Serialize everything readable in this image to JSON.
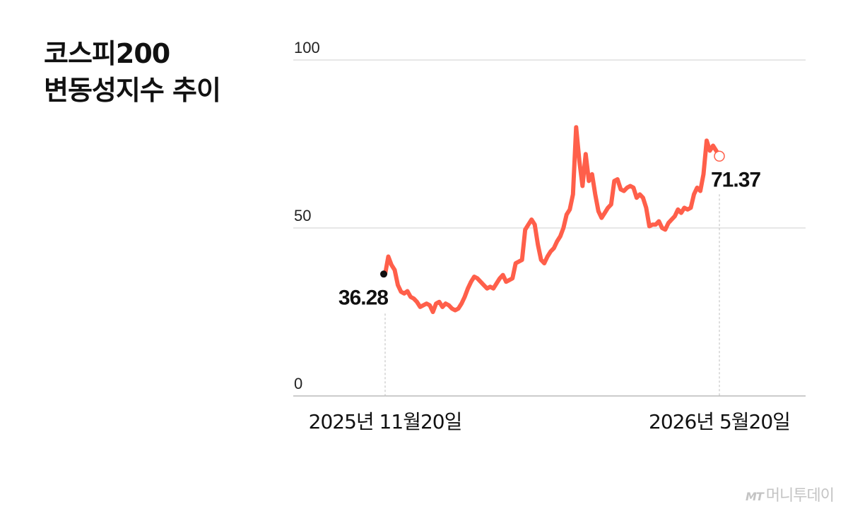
{
  "chart_data": {
    "type": "line",
    "title_lines": [
      "코스피200",
      "변동성지수 추이"
    ],
    "xlabel": "",
    "ylabel": "",
    "ylim": [
      0,
      100
    ],
    "yticks": [
      "100",
      "50",
      "0"
    ],
    "ytick_values": [
      100,
      50,
      0
    ],
    "xtick_labels": [
      "2025년 11월20일",
      "2026년 5월20일"
    ],
    "grid": true,
    "color": "#ff5f4a",
    "series": [
      {
        "values": [
          36.28,
          41.5,
          39.0,
          37.5,
          33.0,
          31.0,
          30.5,
          31.2,
          29.5,
          29.0,
          28.0,
          26.5,
          27.0,
          27.5,
          27.0,
          25.0,
          27.5,
          28.0,
          26.5,
          27.5,
          27.0,
          26.0,
          25.5,
          26.0,
          27.5,
          29.5,
          32.0,
          34.0,
          35.5,
          35.0,
          34.0,
          33.0,
          32.0,
          32.5,
          32.0,
          33.5,
          35.0,
          36.0,
          34.0,
          34.5,
          35.0,
          39.5,
          40.0,
          40.5,
          49.5,
          51.0,
          52.5,
          51.0,
          45.0,
          40.5,
          39.5,
          41.5,
          43.0,
          44.0,
          46.0,
          47.5,
          50.0,
          54.0,
          55.5,
          60.0,
          80.0,
          70.0,
          62.5,
          72.0,
          64.0,
          66.0,
          60.0,
          55.0,
          53.0,
          54.5,
          56.0,
          57.0,
          64.0,
          64.5,
          61.5,
          61.0,
          62.0,
          62.5,
          62.0,
          59.0,
          60.0,
          59.0,
          56.0,
          50.5,
          51.0,
          51.0,
          52.0,
          50.0,
          49.5,
          51.5,
          52.5,
          53.5,
          55.5,
          54.5,
          56.0,
          55.5,
          56.0,
          60.0,
          62.0,
          61.0,
          66.0,
          76.0,
          73.0,
          74.5,
          73.0,
          71.37
        ],
        "start_value": 36.28,
        "end_value": 71.37
      }
    ],
    "annotations": {
      "start_label": "36.28",
      "end_label": "71.37"
    }
  },
  "watermark": {
    "logo": "MT",
    "text": "머니투데이"
  }
}
